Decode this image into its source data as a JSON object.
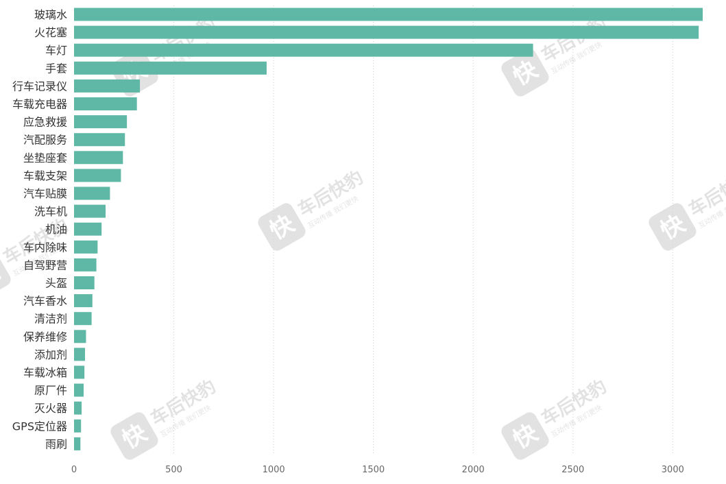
{
  "chart_data": {
    "type": "bar",
    "orientation": "horizontal",
    "title": "",
    "xlabel": "",
    "ylabel": "",
    "categories": [
      "玻璃水",
      "火花塞",
      "车灯",
      "手套",
      "行车记录仪",
      "车载充电器",
      "应急救援",
      "汽配服务",
      "坐垫座套",
      "车载支架",
      "汽车贴膜",
      "洗车机",
      "机油",
      "车内除味",
      "自驾野营",
      "头盔",
      "汽车香水",
      "清洁剂",
      "保养维修",
      "添加剂",
      "车载冰箱",
      "原厂件",
      "灭火器",
      "GPS定位器",
      "雨刷"
    ],
    "values": [
      3150,
      3130,
      2300,
      965,
      330,
      315,
      265,
      255,
      245,
      235,
      180,
      158,
      138,
      118,
      112,
      102,
      92,
      88,
      60,
      55,
      52,
      48,
      38,
      35,
      32
    ],
    "xlim": [
      0,
      3150
    ],
    "xticks": [
      0,
      500,
      1000,
      1500,
      2000,
      2500,
      3000
    ],
    "xtick_labels": [
      "0",
      "500",
      "1000",
      "1500",
      "2000",
      "2500",
      "3000"
    ],
    "grid": "vertical dotted",
    "legend": "none",
    "bar_color": "#5fb8a6"
  },
  "watermark": {
    "logo_char": "快",
    "brand": "车后快豹",
    "sub": "互动传播  我们更快"
  },
  "colors": {
    "grid": "#cccccc",
    "label": "#333333",
    "tick": "#666666",
    "watermark": "#d9d9d9"
  }
}
